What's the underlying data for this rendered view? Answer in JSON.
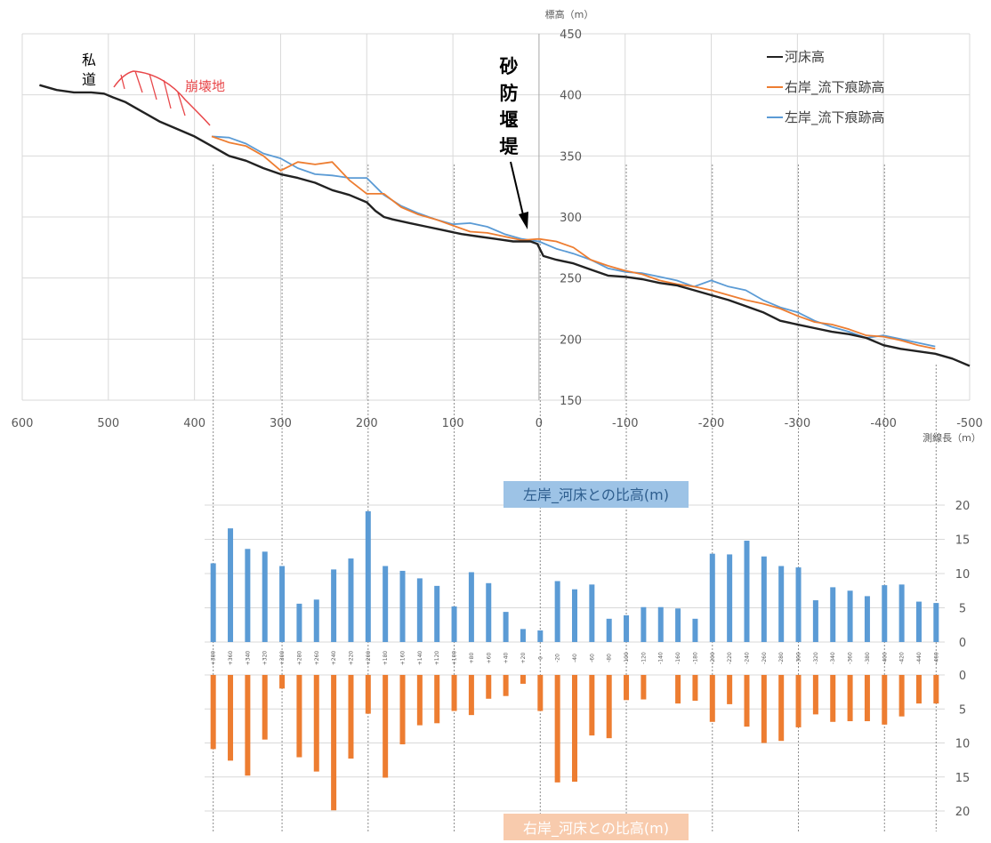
{
  "colors": {
    "river": "#222222",
    "right_bank": "#ed7d31",
    "left_bank": "#5b9bd5",
    "grid": "#d9d9d9",
    "left_box_bg": "#9dc3e6",
    "right_box_bg": "#f8cbad",
    "landslide": "#e8474a"
  },
  "chart_data": [
    {
      "type": "line",
      "ylabel": "標高（m）",
      "xlabel": "測線長（m）",
      "xlim": [
        600,
        -500
      ],
      "ylim": [
        150,
        450
      ],
      "x_ticks": [
        600,
        500,
        400,
        300,
        200,
        100,
        0,
        -100,
        -200,
        -300,
        -400,
        -500
      ],
      "y_ticks": [
        150,
        200,
        250,
        300,
        350,
        400,
        450
      ],
      "legend_position": "top-right",
      "series": [
        {
          "name": "河床高",
          "color": "#222222",
          "points": [
            [
              580,
              408
            ],
            [
              560,
              404
            ],
            [
              540,
              402
            ],
            [
              520,
              402
            ],
            [
              505,
              401
            ],
            [
              495,
              398
            ],
            [
              480,
              394
            ],
            [
              460,
              386
            ],
            [
              440,
              378
            ],
            [
              420,
              372
            ],
            [
              400,
              366
            ],
            [
              380,
              358
            ],
            [
              360,
              350
            ],
            [
              340,
              346
            ],
            [
              320,
              340
            ],
            [
              300,
              335
            ],
            [
              280,
              332
            ],
            [
              260,
              328
            ],
            [
              240,
              322
            ],
            [
              220,
              318
            ],
            [
              200,
              312
            ],
            [
              190,
              305
            ],
            [
              180,
              300
            ],
            [
              170,
              298
            ],
            [
              150,
              295
            ],
            [
              130,
              292
            ],
            [
              110,
              289
            ],
            [
              90,
              286
            ],
            [
              70,
              284
            ],
            [
              50,
              282
            ],
            [
              30,
              280
            ],
            [
              10,
              280
            ],
            [
              2,
              278
            ],
            [
              -5,
              268
            ],
            [
              -20,
              265
            ],
            [
              -40,
              262
            ],
            [
              -60,
              257
            ],
            [
              -80,
              252
            ],
            [
              -100,
              251
            ],
            [
              -120,
              249
            ],
            [
              -140,
              246
            ],
            [
              -160,
              244
            ],
            [
              -180,
              240
            ],
            [
              -200,
              236
            ],
            [
              -220,
              232
            ],
            [
              -240,
              227
            ],
            [
              -260,
              222
            ],
            [
              -280,
              215
            ],
            [
              -300,
              212
            ],
            [
              -320,
              209
            ],
            [
              -340,
              206
            ],
            [
              -360,
              204
            ],
            [
              -380,
              201
            ],
            [
              -400,
              195
            ],
            [
              -420,
              192
            ],
            [
              -440,
              190
            ],
            [
              -460,
              188
            ],
            [
              -480,
              184
            ],
            [
              -500,
              178
            ]
          ]
        },
        {
          "name": "右岸_流下痕跡高",
          "color": "#ed7d31",
          "points": [
            [
              380,
              366
            ],
            [
              360,
              361
            ],
            [
              340,
              358
            ],
            [
              320,
              350
            ],
            [
              300,
              338
            ],
            [
              280,
              345
            ],
            [
              260,
              343
            ],
            [
              240,
              345
            ],
            [
              220,
              330
            ],
            [
              200,
              319
            ],
            [
              180,
              319
            ],
            [
              160,
              308
            ],
            [
              140,
              302
            ],
            [
              120,
              298
            ],
            [
              100,
              293
            ],
            [
              80,
              288
            ],
            [
              60,
              287
            ],
            [
              40,
              284
            ],
            [
              20,
              281
            ],
            [
              0,
              282
            ],
            [
              -20,
              280
            ],
            [
              -40,
              275
            ],
            [
              -60,
              265
            ],
            [
              -80,
              260
            ],
            [
              -100,
              256
            ],
            [
              -120,
              253
            ],
            [
              -140,
              248
            ],
            [
              -160,
              245
            ],
            [
              -180,
              243
            ],
            [
              -200,
              240
            ],
            [
              -220,
              236
            ],
            [
              -240,
              232
            ],
            [
              -260,
              229
            ],
            [
              -280,
              225
            ],
            [
              -300,
              219
            ],
            [
              -320,
              214
            ],
            [
              -340,
              212
            ],
            [
              -360,
              208
            ],
            [
              -380,
              203
            ],
            [
              -400,
              202
            ],
            [
              -420,
              199
            ],
            [
              -440,
              195
            ],
            [
              -460,
              192
            ]
          ]
        },
        {
          "name": "左岸_流下痕跡高",
          "color": "#5b9bd5",
          "points": [
            [
              380,
              366
            ],
            [
              360,
              365
            ],
            [
              340,
              360
            ],
            [
              320,
              352
            ],
            [
              300,
              348
            ],
            [
              280,
              340
            ],
            [
              260,
              335
            ],
            [
              240,
              334
            ],
            [
              220,
              332
            ],
            [
              200,
              332
            ],
            [
              180,
              318
            ],
            [
              160,
              309
            ],
            [
              140,
              303
            ],
            [
              120,
              298
            ],
            [
              100,
              294
            ],
            [
              80,
              295
            ],
            [
              60,
              292
            ],
            [
              40,
              286
            ],
            [
              20,
              282
            ],
            [
              0,
              280
            ],
            [
              -20,
              274
            ],
            [
              -40,
              270
            ],
            [
              -60,
              265
            ],
            [
              -80,
              258
            ],
            [
              -100,
              255
            ],
            [
              -120,
              254
            ],
            [
              -140,
              251
            ],
            [
              -160,
              248
            ],
            [
              -180,
              243
            ],
            [
              -200,
              248
            ],
            [
              -220,
              243
            ],
            [
              -240,
              240
            ],
            [
              -260,
              232
            ],
            [
              -280,
              226
            ],
            [
              -300,
              222
            ],
            [
              -320,
              215
            ],
            [
              -340,
              210
            ],
            [
              -360,
              206
            ],
            [
              -380,
              201
            ],
            [
              -400,
              203
            ],
            [
              -420,
              200
            ],
            [
              -440,
              197
            ],
            [
              -460,
              194
            ]
          ]
        }
      ],
      "annotations": {
        "private_road": [
          "私",
          "道"
        ],
        "landslide": "崩壊地",
        "sabo_dam": [
          "砂",
          "防",
          "堰",
          "堤"
        ]
      }
    },
    {
      "type": "bar",
      "title": "左岸_河床との比高(m)",
      "ylim": [
        0,
        20
      ],
      "y_ticks": [
        0,
        5,
        10,
        15,
        20
      ],
      "categories": [
        "+380",
        "+360",
        "+340",
        "+320",
        "+300",
        "+280",
        "+260",
        "+240",
        "+220",
        "+200",
        "+180",
        "+160",
        "+140",
        "+120",
        "+100",
        "+80",
        "+60",
        "+40",
        "+20",
        "0",
        "-20",
        "-40",
        "-60",
        "-80",
        "-100",
        "-120",
        "-140",
        "-160",
        "-180",
        "-200",
        "-220",
        "-240",
        "-260",
        "-280",
        "-300",
        "-320",
        "-340",
        "-360",
        "-380",
        "-400",
        "-420",
        "-440",
        "-460"
      ],
      "series": [
        {
          "color": "#5b9bd5",
          "values": [
            11.5,
            16.6,
            13.6,
            13.2,
            11.1,
            5.6,
            6.2,
            10.6,
            12.2,
            19.1,
            11.1,
            10.4,
            9.3,
            8.2,
            5.2,
            10.2,
            8.6,
            4.4,
            1.9,
            1.7,
            8.9,
            7.7,
            8.4,
            3.4,
            3.9,
            5.1,
            5.1,
            4.9,
            3.4,
            12.9,
            12.8,
            14.8,
            12.5,
            11.1,
            10.9,
            6.1,
            8.0,
            7.5,
            6.7,
            8.3,
            8.4,
            5.9,
            5.7
          ]
        }
      ]
    },
    {
      "type": "bar",
      "title": "右岸_河床との比高(m)",
      "ylim": [
        0,
        20
      ],
      "y_ticks": [
        0,
        5,
        10,
        15,
        20
      ],
      "categories": [
        "+380",
        "+360",
        "+340",
        "+320",
        "+300",
        "+280",
        "+260",
        "+240",
        "+220",
        "+200",
        "+180",
        "+160",
        "+140",
        "+120",
        "+100",
        "+80",
        "+60",
        "+40",
        "+20",
        "0",
        "-20",
        "-40",
        "-60",
        "-80",
        "-100",
        "-120",
        "-140",
        "-160",
        "-180",
        "-200",
        "-220",
        "-240",
        "-260",
        "-280",
        "-300",
        "-320",
        "-340",
        "-360",
        "-380",
        "-400",
        "-420",
        "-440",
        "-460"
      ],
      "series": [
        {
          "color": "#ed7d31",
          "values": [
            10.9,
            12.6,
            14.8,
            9.5,
            2.0,
            12.1,
            14.2,
            19.9,
            12.3,
            5.7,
            15.1,
            10.2,
            7.4,
            7.1,
            5.3,
            5.9,
            3.5,
            3.1,
            1.3,
            5.3,
            15.8,
            15.7,
            8.9,
            9.3,
            3.7,
            3.6,
            0,
            4.2,
            3.8,
            6.9,
            4.3,
            7.6,
            10.0,
            9.7,
            7.7,
            5.8,
            6.9,
            6.8,
            6.8,
            7.3,
            6.1,
            4.2,
            4.2
          ]
        }
      ]
    }
  ]
}
